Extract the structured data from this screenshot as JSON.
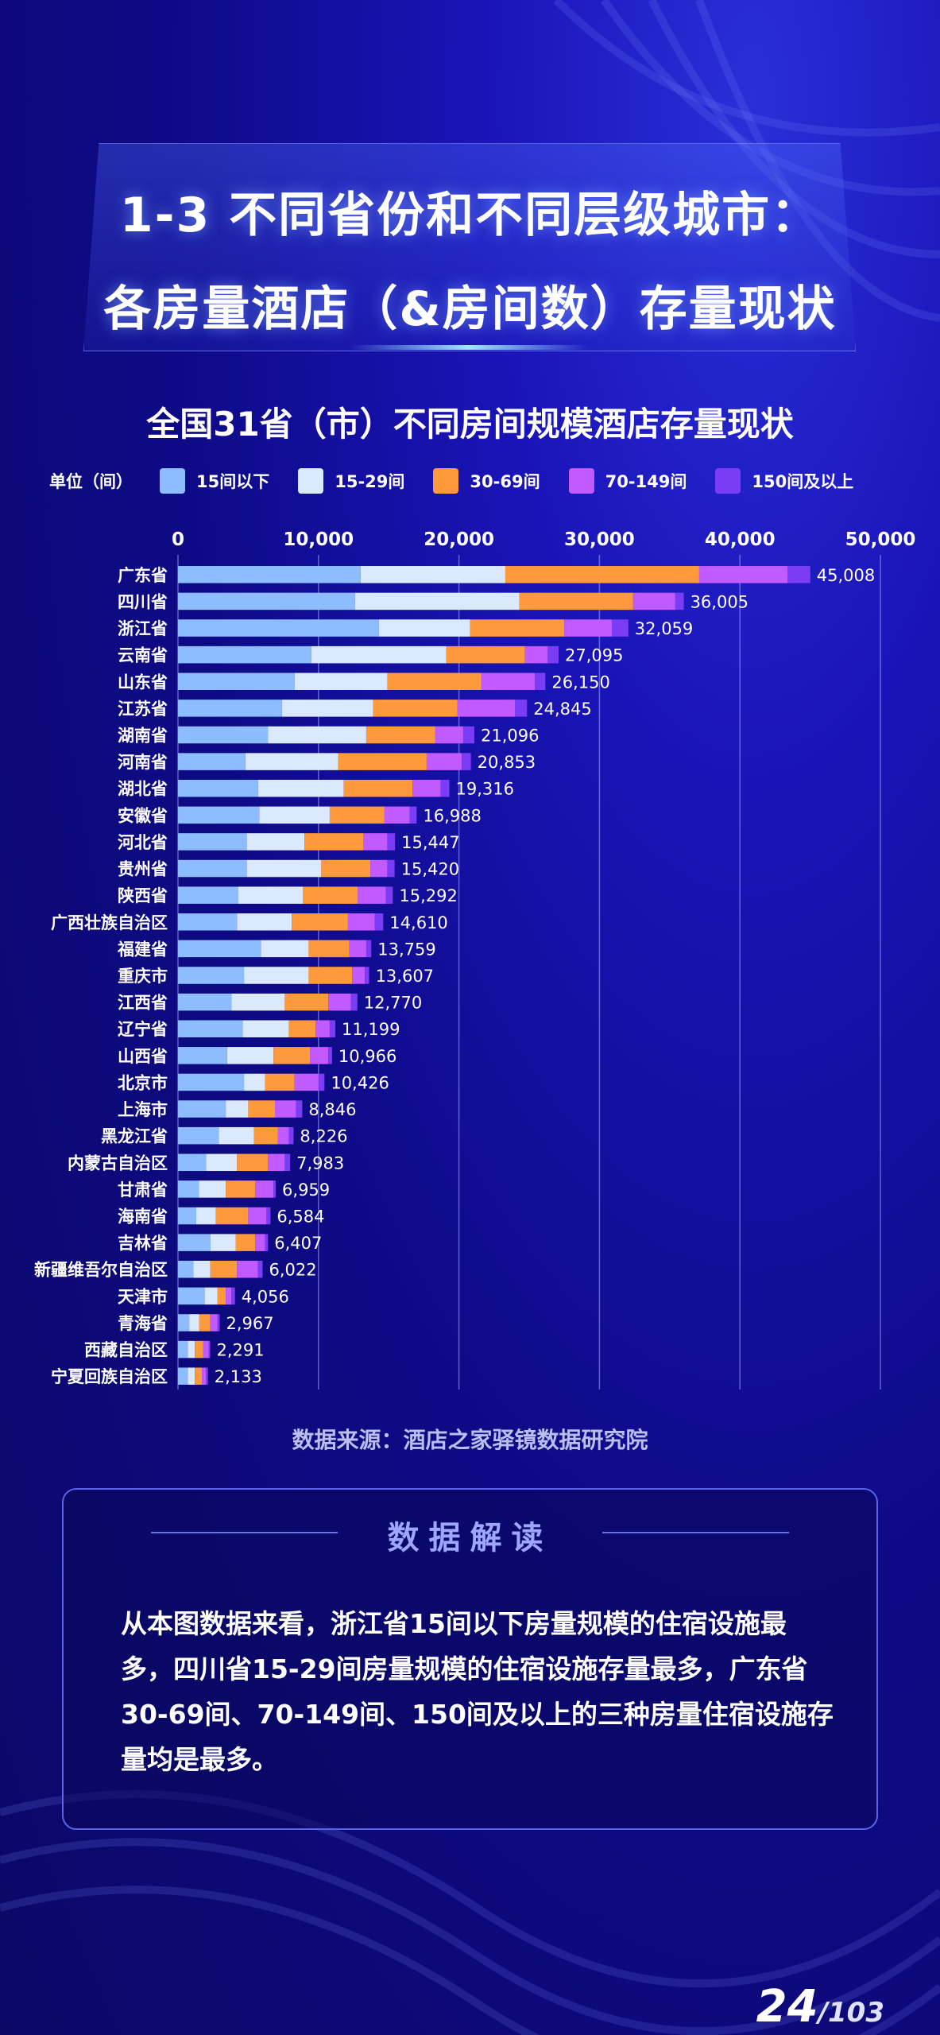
{
  "page": {
    "title_line1": "1-3 不同省份和不同层级城市：",
    "title_line2": "各房量酒店（&房间数）存量现状",
    "source": "数据来源：酒店之家驿镜数据研究院",
    "analysis_heading": "数据解读",
    "analysis_text": "从本图数据来看，浙江省15间以下房量规模的住宿设施最多，四川省15-29间房量规模的住宿设施存量最多，广东省30-69间、70-149间、150间及以上的三种房量住宿设施存量均是最多。",
    "page_current": "24",
    "page_total": "/103"
  },
  "legend": {
    "unit_label": "单位（间）"
  },
  "chart_data": {
    "type": "bar",
    "orientation": "horizontal",
    "stacked": true,
    "title": "全国31省（市）不同房间规模酒店存量现状",
    "xlim": [
      0,
      50000
    ],
    "x_ticks": [
      "0",
      "10,000",
      "20,000",
      "30,000",
      "40,000",
      "50,000"
    ],
    "x_tick_values": [
      0,
      10000,
      20000,
      30000,
      40000,
      50000
    ],
    "grid": true,
    "legend_position": "top",
    "categories": [
      "广东省",
      "四川省",
      "浙江省",
      "云南省",
      "山东省",
      "江苏省",
      "湖南省",
      "河南省",
      "湖北省",
      "安徽省",
      "河北省",
      "贵州省",
      "陕西省",
      "广西壮族自治区",
      "福建省",
      "重庆市",
      "江西省",
      "辽宁省",
      "山西省",
      "北京市",
      "上海市",
      "黑龙江省",
      "内蒙古自治区",
      "甘肃省",
      "海南省",
      "吉林省",
      "新疆维吾尔自治区",
      "天津市",
      "青海省",
      "西藏自治区",
      "宁夏回族自治区"
    ],
    "totals": [
      45008,
      36005,
      32059,
      27095,
      26150,
      24845,
      21096,
      20853,
      19316,
      16988,
      15447,
      15420,
      15292,
      14610,
      13759,
      13607,
      12770,
      11199,
      10966,
      10426,
      8846,
      8226,
      7983,
      6959,
      6584,
      6407,
      6022,
      4056,
      2967,
      2291,
      2133
    ],
    "total_labels": [
      "45,008",
      "36,005",
      "32,059",
      "27,095",
      "26,150",
      "24,845",
      "21,096",
      "20,853",
      "19,316",
      "16,988",
      "15,447",
      "15,420",
      "15,292",
      "14,610",
      "13,759",
      "13,607",
      "12,770",
      "11,199",
      "10,966",
      "10,426",
      "8,846",
      "8,226",
      "7,983",
      "6,959",
      "6,584",
      "6,407",
      "6,022",
      "4,056",
      "2,967",
      "2,291",
      "2,133"
    ],
    "series": [
      {
        "name": "15间以下",
        "color": "#8dbcff",
        "values": [
          13000,
          12600,
          14300,
          9500,
          8300,
          7400,
          6400,
          4800,
          5700,
          5800,
          4900,
          4900,
          4300,
          4200,
          5900,
          4700,
          3800,
          4600,
          3500,
          4700,
          3400,
          2900,
          2000,
          1500,
          1300,
          2300,
          1100,
          1900,
          800,
          700,
          700
        ]
      },
      {
        "name": "15-29间",
        "color": "#dbe9ff",
        "values": [
          10300,
          11700,
          6500,
          9600,
          6600,
          6500,
          7000,
          6600,
          6100,
          5000,
          4100,
          5300,
          4600,
          3900,
          3400,
          4600,
          3800,
          3300,
          3300,
          1500,
          1600,
          2500,
          2200,
          1900,
          1400,
          1800,
          1200,
          900,
          700,
          500,
          500
        ]
      },
      {
        "name": "30-69间",
        "color": "#ff9a3c",
        "values": [
          13800,
          8100,
          6700,
          5600,
          6700,
          6000,
          4900,
          6300,
          4900,
          3900,
          4200,
          3500,
          3900,
          4000,
          2900,
          3100,
          3100,
          1900,
          2600,
          2100,
          1900,
          1700,
          2200,
          2100,
          2300,
          1400,
          1900,
          600,
          800,
          600,
          500
        ]
      },
      {
        "name": "70-149间",
        "color": "#c15bff",
        "values": [
          6300,
          3000,
          3400,
          1600,
          3800,
          4100,
          2000,
          2500,
          2000,
          1800,
          1700,
          1200,
          2000,
          1900,
          1200,
          900,
          1600,
          1000,
          1300,
          1700,
          1500,
          800,
          1200,
          1300,
          1300,
          700,
          1500,
          400,
          500,
          400,
          300
        ]
      },
      {
        "name": "150间及以上",
        "color": "#7a3cf5",
        "values": [
          1608,
          605,
          1159,
          795,
          750,
          845,
          796,
          653,
          616,
          488,
          547,
          520,
          492,
          610,
          359,
          307,
          470,
          399,
          266,
          426,
          446,
          326,
          383,
          159,
          284,
          207,
          322,
          256,
          167,
          91,
          133
        ]
      }
    ]
  }
}
